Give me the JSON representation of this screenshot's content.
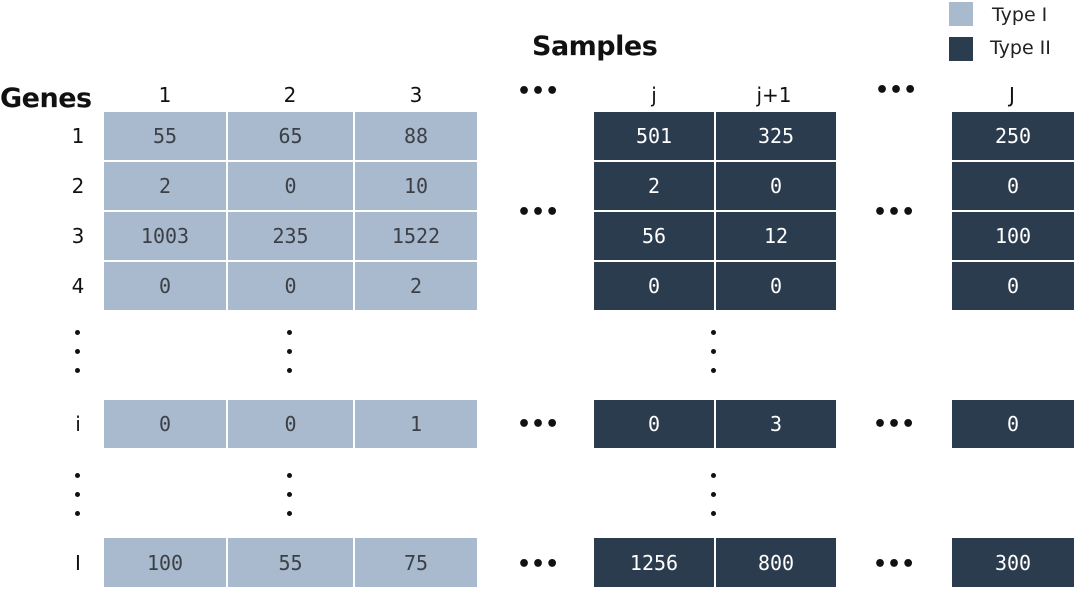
{
  "title": "Samples",
  "row_header": "Genes",
  "legend": [
    {
      "label": "Type I",
      "color": "#a9bace"
    },
    {
      "label": "Type II",
      "color": "#2c3c4f"
    }
  ],
  "columns": [
    "1",
    "2",
    "3",
    "j",
    "j+1",
    "J"
  ],
  "rows": [
    "1",
    "2",
    "3",
    "4",
    "i",
    "I"
  ],
  "ellipsis": "•••",
  "cells": {
    "r1": [
      "55",
      "65",
      "88",
      "501",
      "325",
      "250"
    ],
    "r2": [
      "2",
      "0",
      "10",
      "2",
      "0",
      "0"
    ],
    "r3": [
      "1003",
      "235",
      "1522",
      "56",
      "12",
      "100"
    ],
    "r4": [
      "0",
      "0",
      "2",
      "0",
      "0",
      "0"
    ],
    "ri": [
      "0",
      "0",
      "1",
      "0",
      "3",
      "0"
    ],
    "rI": [
      "100",
      "55",
      "75",
      "1256",
      "800",
      "300"
    ]
  }
}
